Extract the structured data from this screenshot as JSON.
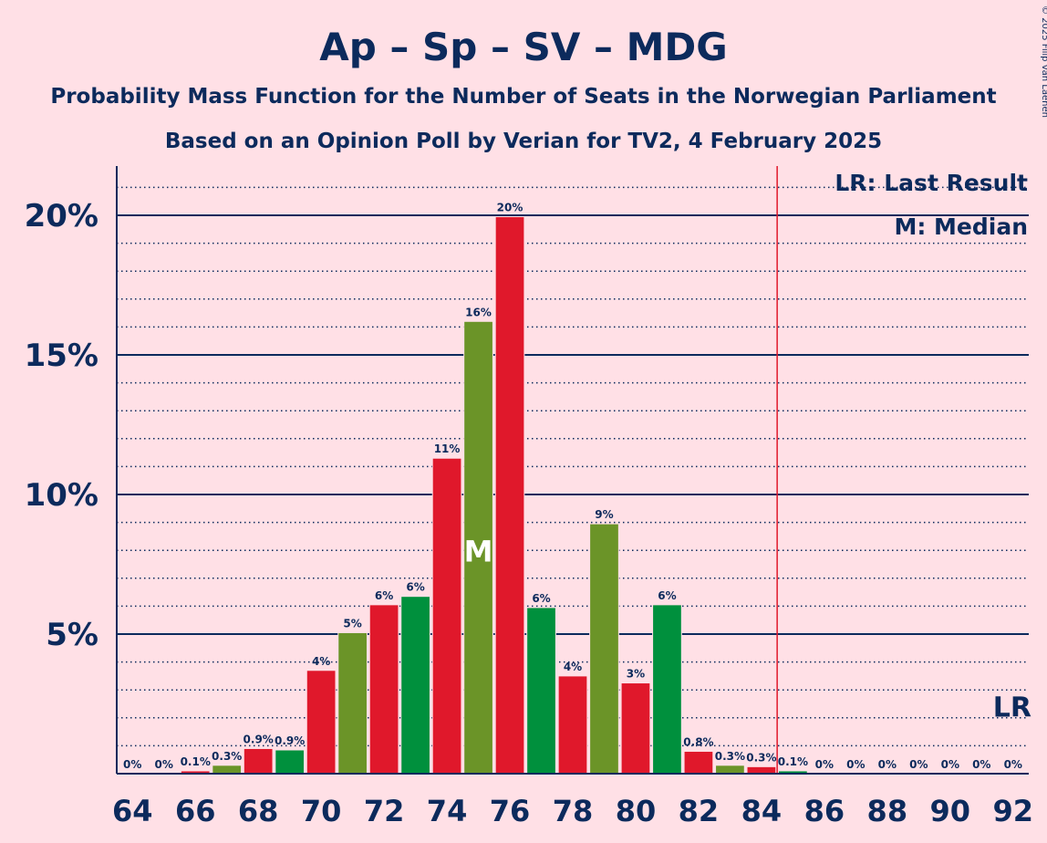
{
  "chart_data": {
    "type": "bar",
    "title": "Ap – Sp – SV – MDG",
    "subtitle": "Probability Mass Function for the Number of Seats in the Norwegian Parliament",
    "subtitle2": "Based on an Opinion Poll by Verian for TV2, 4 February 2025",
    "copyright": "© 2025 Filip van Laenen",
    "x": [
      64,
      65,
      66,
      67,
      68,
      69,
      70,
      71,
      72,
      73,
      74,
      75,
      76,
      77,
      78,
      79,
      80,
      81,
      82,
      83,
      84,
      85,
      86,
      87,
      88,
      89,
      90,
      91,
      92
    ],
    "values": [
      0,
      0,
      0.1,
      0.3,
      0.9,
      0.85,
      3.7,
      5.05,
      6.05,
      6.35,
      11.3,
      16.2,
      19.95,
      5.95,
      3.5,
      8.95,
      3.25,
      6.05,
      0.8,
      0.3,
      0.25,
      0.1,
      0,
      0,
      0,
      0,
      0,
      0,
      0
    ],
    "value_labels": [
      "0%",
      "0%",
      "0.1%",
      "0.3%",
      "0.9%",
      "0.9%",
      "4%",
      "5%",
      "6%",
      "6%",
      "11%",
      "16%",
      "20%",
      "6%",
      "4%",
      "9%",
      "3%",
      "6%",
      "0.8%",
      "0.3%",
      "0.3%",
      "0.1%",
      "0%",
      "0%",
      "0%",
      "0%",
      "0%",
      "0%",
      "0%"
    ],
    "bar_colors": [
      "#E0182B",
      "#E0182B",
      "#E0182B",
      "#6B9428",
      "#E0182B",
      "#00903D",
      "#E0182B",
      "#6B9428",
      "#E0182B",
      "#00903D",
      "#E0182B",
      "#6B9428",
      "#E0182B",
      "#00903D",
      "#E0182B",
      "#6B9428",
      "#E0182B",
      "#00903D",
      "#E0182B",
      "#6B9428",
      "#E0182B",
      "#00903D",
      "#E0182B",
      "#6B9428",
      "#E0182B",
      "#00903D",
      "#E0182B",
      "#6B9428",
      "#E0182B"
    ],
    "x_tick_labels": [
      "64",
      "66",
      "68",
      "70",
      "72",
      "74",
      "76",
      "78",
      "80",
      "82",
      "84",
      "86",
      "88",
      "90",
      "92"
    ],
    "y_ticks": [
      5,
      10,
      15,
      20
    ],
    "y_tick_labels": [
      "5%",
      "10%",
      "15%",
      "20%"
    ],
    "ylim": [
      0,
      21.7
    ],
    "median": 75,
    "median_label": "M",
    "last_result": 84.5,
    "last_result_label": "LR",
    "legend": [
      "LR: Last Result",
      "M: Median"
    ],
    "legend_position": "top-right",
    "grid": "major solid, minor dotted",
    "colors": {
      "background": "#FFE0E6",
      "text": "#0C2A5C",
      "lr_line": "#E0182B"
    }
  }
}
